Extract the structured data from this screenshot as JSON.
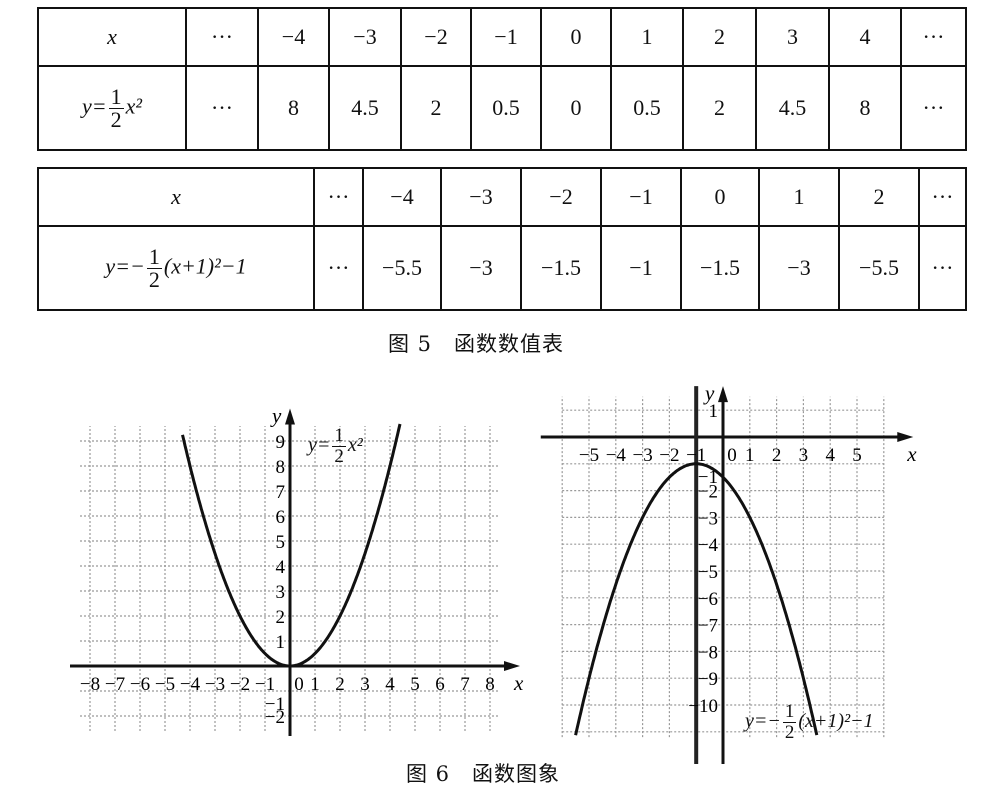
{
  "table1": {
    "header": {
      "var": "x",
      "cells": [
        "···",
        "−4",
        "−3",
        "−2",
        "−1",
        "0",
        "1",
        "2",
        "3",
        "4",
        "···"
      ]
    },
    "row": {
      "prefix": "y=",
      "num": "1",
      "den": "2",
      "suffix": "x²",
      "cells": [
        "···",
        "8",
        "4.5",
        "2",
        "0.5",
        "0",
        "0.5",
        "2",
        "4.5",
        "8",
        "···"
      ]
    }
  },
  "table2": {
    "header": {
      "var": "x",
      "cells": [
        "···",
        "−4",
        "−3",
        "−2",
        "−1",
        "0",
        "1",
        "2",
        "···"
      ]
    },
    "row": {
      "prefix": "y=−",
      "num": "1",
      "den": "2",
      "suffix": "(x+1)²−1",
      "cells": [
        "···",
        "−5.5",
        "−3",
        "−1.5",
        "−1",
        "−1.5",
        "−3",
        "−5.5",
        "···"
      ]
    }
  },
  "caption5": "图 5　函数数值表",
  "caption6": "图 6　函数图象",
  "graphs": [
    {
      "function": "y = 1/2 x^2",
      "x_label": "x",
      "y_label": "y",
      "xlim": [
        -8,
        8
      ],
      "ylim": [
        -2,
        9
      ],
      "x_ticks": [
        "−8",
        "−7",
        "−6",
        "−5",
        "−4",
        "−3",
        "−2",
        "−1",
        "0",
        "1",
        "2",
        "3",
        "4",
        "5",
        "6",
        "7",
        "8"
      ],
      "y_ticks": [
        "−2",
        "−1",
        "1",
        "2",
        "3",
        "4",
        "5",
        "6",
        "7",
        "8",
        "9"
      ],
      "formula": {
        "prefix": "y=",
        "num": "1",
        "den": "2",
        "suffix": "x²"
      }
    },
    {
      "function": "y = -1/2 (x+1)^2 - 1",
      "x_label": "x",
      "y_label": "y",
      "xlim": [
        -5,
        5
      ],
      "ylim": [
        -10,
        1
      ],
      "x_ticks": [
        "−5",
        "−4",
        "−3",
        "−2",
        "−1",
        "0",
        "1",
        "2",
        "3",
        "4",
        "5"
      ],
      "y_ticks": [
        "1",
        "−1",
        "−2",
        "−3",
        "−4",
        "−5",
        "−6",
        "−7",
        "−8",
        "−9",
        "−10"
      ],
      "axis_of_symmetry": -1,
      "formula": {
        "prefix": "y=−",
        "num": "1",
        "den": "2",
        "suffix": "(x+1)²−1"
      }
    }
  ]
}
